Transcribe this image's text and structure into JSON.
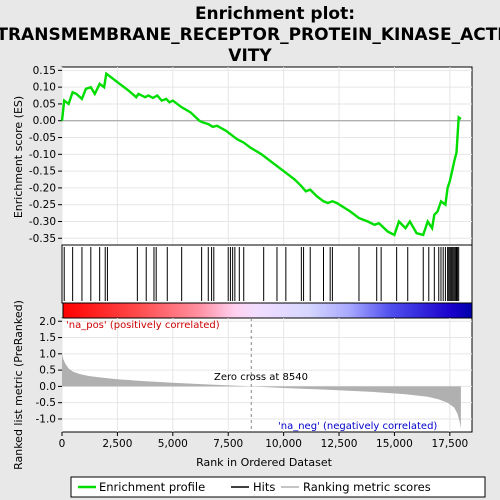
{
  "title_line1": "Enrichment plot:",
  "title_line2": "TRANSMEMBRANE_RECEPTOR_PROTEIN_KINASE_ACTI",
  "title_line3": "VITY",
  "annotations": {
    "pos": "'na_pos' (positively correlated)",
    "neg": "'na_neg' (negatively correlated)",
    "zero": "Zero cross at 8540"
  },
  "legend": {
    "profile": "Enrichment profile",
    "hits": "Hits",
    "metric": "Ranking metric scores"
  },
  "colors": {
    "profile": "#00dd00",
    "hits": "#000000",
    "metric": "#b0b0b0"
  },
  "chart_data": [
    {
      "type": "line",
      "name": "enrichment-profile",
      "ylabel": "Enrichment score (ES)",
      "xlim": [
        0,
        18500
      ],
      "ylim": [
        -0.37,
        0.16
      ],
      "yticks": [
        0.15,
        0.1,
        0.05,
        0.0,
        -0.05,
        -0.1,
        -0.15,
        -0.2,
        -0.25,
        -0.3,
        -0.35
      ],
      "ytick_labels": [
        "0.15",
        "0.10",
        "0.05",
        "0.00",
        "-0.05",
        "-0.10",
        "-0.15",
        "-0.20",
        "-0.25",
        "-0.30",
        "-0.35"
      ],
      "x": [
        0,
        100,
        300,
        480,
        650,
        900,
        1080,
        1300,
        1480,
        1700,
        1900,
        2000,
        2200,
        2600,
        3000,
        3350,
        3450,
        3750,
        3900,
        4100,
        4300,
        4500,
        4700,
        4850,
        5000,
        5400,
        5800,
        6200,
        6350,
        6600,
        6800,
        7000,
        7400,
        7700,
        7900,
        8200,
        8500,
        9000,
        9500,
        10000,
        10500,
        10800,
        11000,
        11200,
        11500,
        11800,
        12000,
        12200,
        12400,
        13000,
        13400,
        13800,
        14100,
        14300,
        14700,
        15000,
        15200,
        15500,
        15700,
        16000,
        16300,
        16500,
        16700,
        16800,
        16950,
        17100,
        17300,
        17400,
        17500,
        17600,
        17700,
        17800,
        17900,
        18000
      ],
      "y": [
        0.0,
        0.06,
        0.05,
        0.085,
        0.08,
        0.065,
        0.095,
        0.1,
        0.08,
        0.11,
        0.1,
        0.14,
        0.13,
        0.11,
        0.09,
        0.07,
        0.08,
        0.07,
        0.075,
        0.068,
        0.075,
        0.06,
        0.065,
        0.055,
        0.06,
        0.04,
        0.025,
        0.0,
        -0.005,
        -0.01,
        -0.018,
        -0.015,
        -0.03,
        -0.045,
        -0.055,
        -0.065,
        -0.08,
        -0.1,
        -0.125,
        -0.15,
        -0.175,
        -0.195,
        -0.21,
        -0.205,
        -0.225,
        -0.24,
        -0.245,
        -0.24,
        -0.245,
        -0.27,
        -0.29,
        -0.3,
        -0.31,
        -0.305,
        -0.33,
        -0.34,
        -0.3,
        -0.32,
        -0.3,
        -0.335,
        -0.34,
        -0.3,
        -0.32,
        -0.28,
        -0.27,
        -0.24,
        -0.25,
        -0.2,
        -0.18,
        -0.15,
        -0.12,
        -0.095,
        0.01,
        0.005
      ]
    },
    {
      "type": "scatter",
      "name": "hits",
      "x": [
        100,
        480,
        900,
        1300,
        1700,
        1950,
        2050,
        3400,
        3800,
        4150,
        4250,
        4750,
        5400,
        6300,
        6600,
        6750,
        6850,
        7500,
        7600,
        7700,
        7800,
        8000,
        8200,
        9100,
        9700,
        10100,
        10800,
        10900,
        11200,
        11800,
        12100,
        12200,
        13400,
        14200,
        14400,
        15100,
        15600,
        16300,
        16550,
        16800,
        17000,
        17100,
        17200,
        17300,
        17400,
        17450,
        17500,
        17550,
        17600,
        17650,
        17700,
        17750,
        17800,
        17850,
        17900
      ]
    },
    {
      "type": "area",
      "name": "ranking-metric",
      "xlabel": "Rank in Ordered Dataset",
      "ylabel": "Ranked list metric (PreRanked)",
      "xlim": [
        0,
        18500
      ],
      "ylim": [
        -1.4,
        2.1
      ],
      "yticks": [
        2.0,
        1.5,
        1.0,
        0.5,
        0.0,
        -0.5,
        -1.0
      ],
      "ytick_labels": [
        "2.0",
        "1.5",
        "1.0",
        "0.5",
        "0.0",
        "-0.5",
        "-1.0"
      ],
      "xticks": [
        0,
        2500,
        5000,
        7500,
        10000,
        12500,
        15000,
        17500
      ],
      "xtick_labels": [
        "0",
        "2,500",
        "5,000",
        "7,500",
        "10,000",
        "12,500",
        "15,000",
        "17,500"
      ],
      "zero_cross": 8540,
      "x": [
        0,
        50,
        150,
        300,
        500,
        800,
        1200,
        1800,
        2500,
        3500,
        5000,
        6500,
        8540,
        10000,
        12000,
        14000,
        15500,
        16500,
        17000,
        17400,
        17700,
        17850,
        17950,
        18000
      ],
      "y": [
        1.0,
        0.85,
        0.7,
        0.55,
        0.45,
        0.38,
        0.32,
        0.27,
        0.22,
        0.17,
        0.11,
        0.06,
        0.0,
        -0.05,
        -0.1,
        -0.17,
        -0.24,
        -0.32,
        -0.4,
        -0.5,
        -0.65,
        -0.85,
        -1.1,
        -1.3
      ]
    }
  ]
}
